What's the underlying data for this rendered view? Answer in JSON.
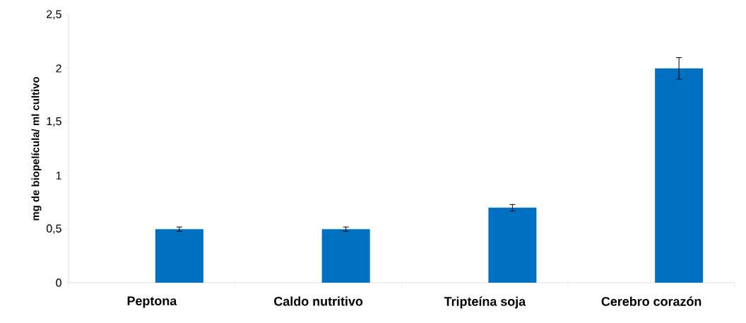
{
  "chart_data": {
    "type": "bar",
    "ylabel": "mg de biopelícula/ ml cultivo",
    "categories": [
      "Peptona",
      "Caldo nutritivo",
      "Tripteína soja",
      "Cerebro corazón"
    ],
    "values": [
      0.5,
      0.5,
      0.7,
      2.0
    ],
    "errors": [
      0.02,
      0.02,
      0.03,
      0.1
    ],
    "color": "#0070c0",
    "ylim": [
      0,
      2.5
    ],
    "yticks": [
      0,
      {
        "value": 0.5,
        "label": "0,5"
      },
      1,
      {
        "value": 1.5,
        "label": "1,5"
      },
      2,
      {
        "value": 2.5,
        "label": "2,5"
      }
    ],
    "grid": false
  }
}
